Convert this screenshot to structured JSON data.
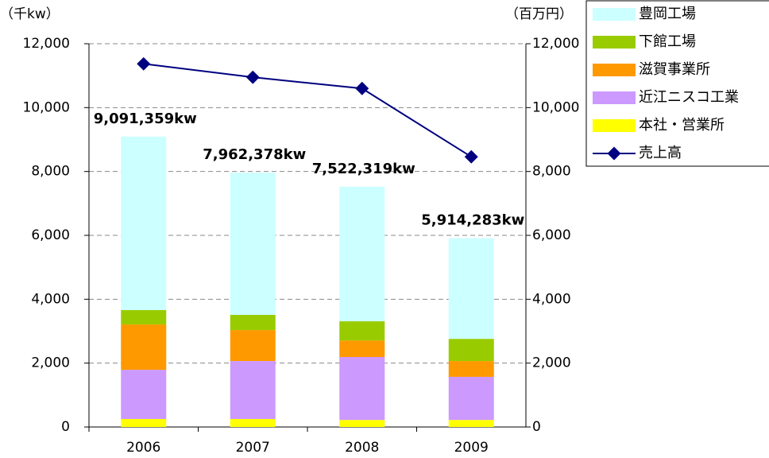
{
  "chart_data": {
    "type": "bar",
    "y_label": "（千kw）",
    "y2_label": "（百万円）",
    "categories": [
      "2006",
      "2007",
      "2008",
      "2009"
    ],
    "series": [
      {
        "name": "本社・営業所",
        "color": "#ffff00",
        "values": [
          250,
          250,
          220,
          220
        ]
      },
      {
        "name": "近江ニスコ工業",
        "color": "#cc99ff",
        "values": [
          1540,
          1815,
          1970,
          1350
        ]
      },
      {
        "name": "滋賀事業所",
        "color": "#ff9900",
        "values": [
          1420,
          970,
          520,
          495
        ]
      },
      {
        "name": "下館工場",
        "color": "#99cc00",
        "values": [
          450,
          475,
          600,
          695
        ]
      },
      {
        "name": "豊岡工場",
        "color": "#ccffff",
        "values": [
          5431,
          4452,
          4212,
          3154
        ]
      },
      {
        "name": "売上高",
        "color": "#000080",
        "type": "line",
        "axis": "y2",
        "values": [
          11370,
          10950,
          10600,
          8460
        ]
      }
    ],
    "annotations": [
      "9,091,359kw",
      "7,962,378kw",
      "7,522,319kw",
      "5,914,283kw"
    ],
    "ylim": [
      0,
      12000
    ],
    "yticks": [
      0,
      {
        "value": 2000,
        "label": "2,000"
      },
      {
        "value": 4000,
        "label": "4,000"
      },
      {
        "value": 6000,
        "label": "6,000"
      },
      {
        "value": 8000,
        "label": "8,000"
      },
      {
        "value": 10000,
        "label": "10,000"
      },
      {
        "value": 12000,
        "label": "12,000"
      }
    ],
    "y2lim": [
      0,
      12000
    ],
    "y2ticks": [
      0,
      {
        "value": 2000,
        "label": "2,000"
      },
      {
        "value": 4000,
        "label": "4,000"
      },
      {
        "value": 6000,
        "label": "6,000"
      },
      {
        "value": 8000,
        "label": "8,000"
      },
      {
        "value": 10000,
        "label": "10,000"
      },
      {
        "value": 12000,
        "label": "12,000"
      }
    ],
    "grid": true,
    "legend": "top-right"
  }
}
